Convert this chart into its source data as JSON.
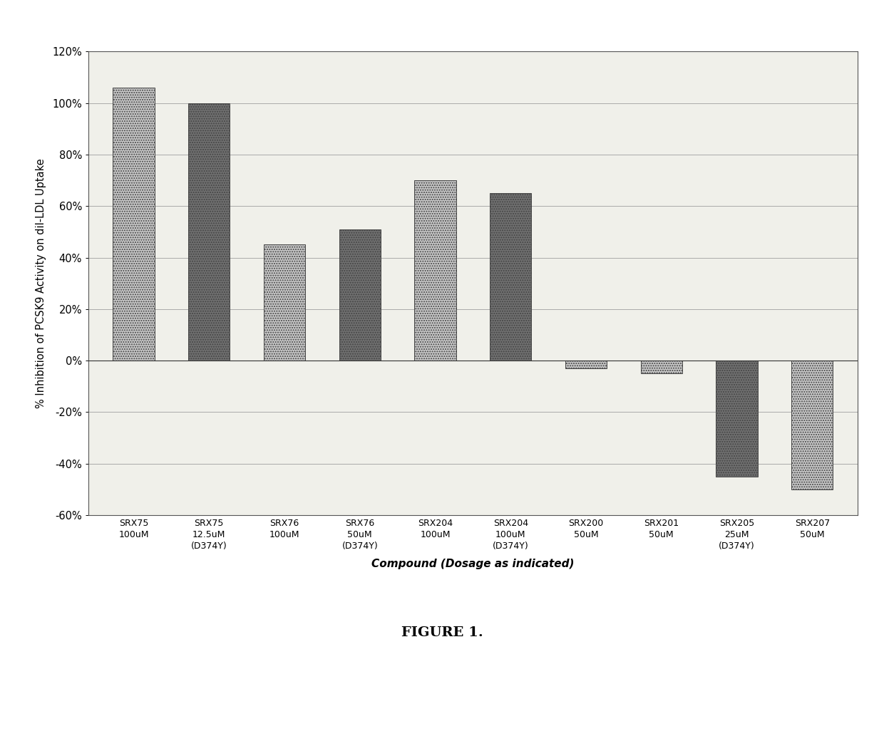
{
  "categories": [
    "SRX75\n100uM",
    "SRX75\n12.5uM\n(D374Y)",
    "SRX76\n100uM",
    "SRX76\n50uM\n(D374Y)",
    "SRX204\n100uM",
    "SRX204\n100uM\n(D374Y)",
    "SRX200\n50uM",
    "SRX201\n50uM",
    "SRX205\n25uM\n(D374Y)",
    "SRX207\n50uM"
  ],
  "values": [
    106,
    100,
    45,
    51,
    70,
    65,
    -3,
    -5,
    -45,
    -50
  ],
  "bar_colors_light": "#c8c8c8",
  "bar_colors_dark": "#707070",
  "ylabel": "% Inhibition of PCSK9 Activity on dil-LDL Uptake",
  "xlabel": "Compound (Dosage as indicated)",
  "ylim": [
    -60,
    120
  ],
  "yticks": [
    -60,
    -40,
    -20,
    0,
    20,
    40,
    60,
    80,
    100,
    120
  ],
  "ytick_labels": [
    "-60%",
    "-40%",
    "-20%",
    "0%",
    "20%",
    "40%",
    "60%",
    "80%",
    "100%",
    "120%"
  ],
  "figure_label": "FIGURE 1.",
  "background_color": "#f5f5f0",
  "plot_bg_color": "#f0f0ea",
  "grid_color": "#aaaaaa"
}
